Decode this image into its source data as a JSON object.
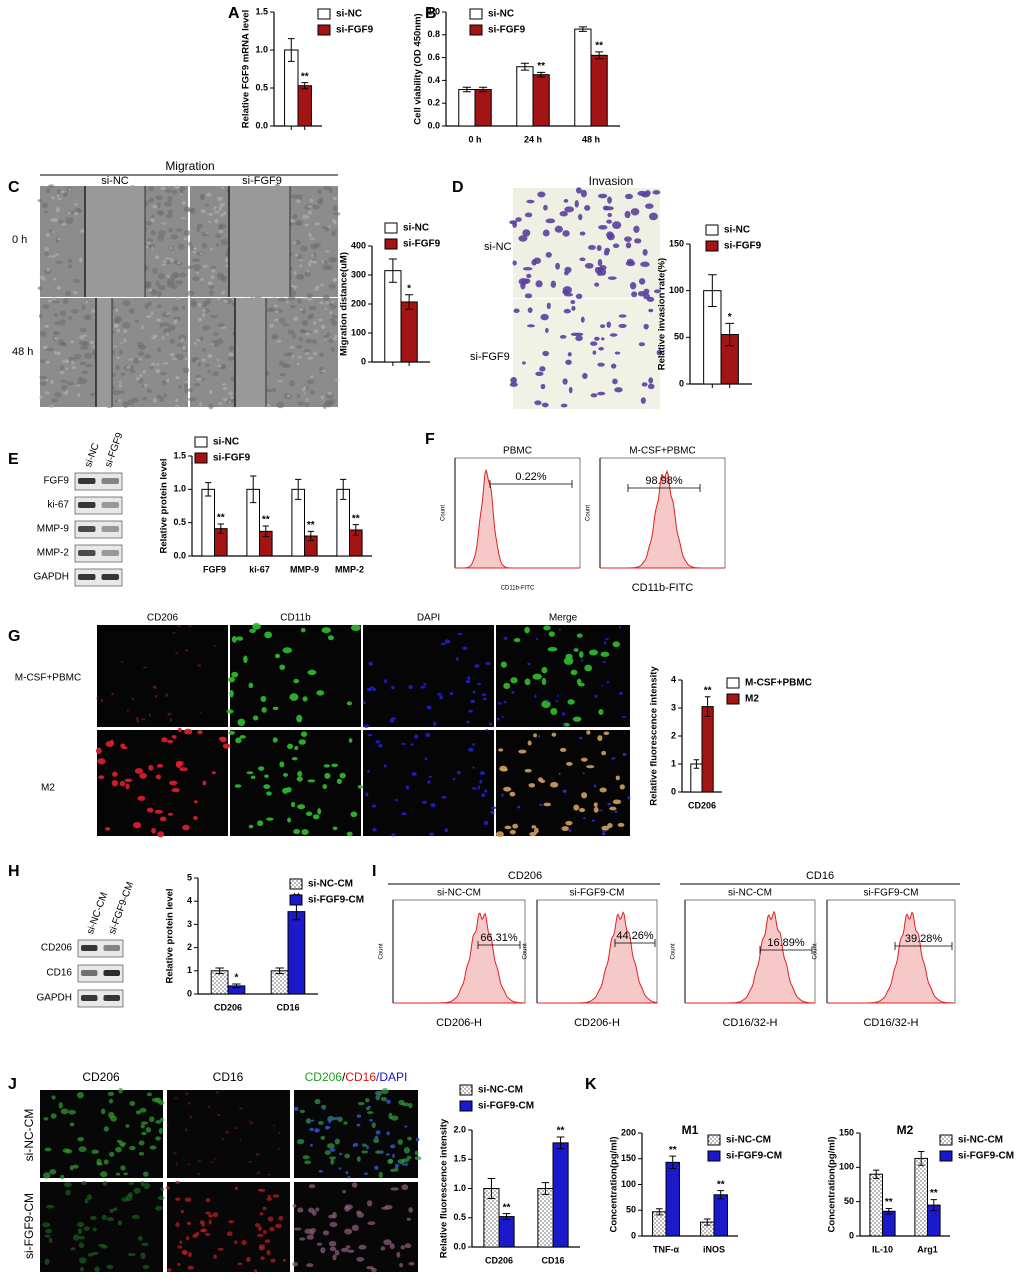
{
  "figure": {
    "panels": [
      "A",
      "B",
      "C",
      "D",
      "E",
      "F",
      "G",
      "H",
      "I",
      "J",
      "K"
    ],
    "C": {
      "title": "Migration",
      "columns": [
        "si-NC",
        "si-FGF9"
      ],
      "rows": [
        "0 h",
        "48 h"
      ]
    },
    "D": {
      "title": "Invasion",
      "rows": [
        "si-NC",
        "si-FGF9"
      ]
    },
    "E": {
      "columns": [
        "si-NC",
        "si-FGF9"
      ],
      "rows": [
        "FGF9",
        "ki-67",
        "MMP-9",
        "MMP-2",
        "GAPDH"
      ]
    },
    "F": {
      "plots": [
        {
          "title": "PBMC",
          "gate": "0.22%",
          "xlabel": "CD11b-FITC",
          "ylabel": "Count"
        },
        {
          "title": "M-CSF+PBMC",
          "gate": "98.98%",
          "xlabel": "CD11b-FITC",
          "ylabel": "Count"
        }
      ]
    },
    "G": {
      "columns": [
        "CD206",
        "CD11b",
        "DAPI",
        "Merge"
      ],
      "rows": [
        "M-CSF+PBMC",
        "M2"
      ]
    },
    "H": {
      "columns": [
        "si-NC-CM",
        "si-FGF9-CM"
      ],
      "rows": [
        "CD206",
        "CD16",
        "GAPDH"
      ]
    },
    "I": {
      "groups": [
        "CD206",
        "CD16"
      ],
      "plots": [
        {
          "title": "si-NC-CM",
          "gate": "66.31%",
          "xlabel": "CD206-H",
          "ylabel": "Count"
        },
        {
          "title": "si-FGF9-CM",
          "gate": "44.26%",
          "xlabel": "CD206-H",
          "ylabel": "Count"
        },
        {
          "title": "si-NC-CM",
          "gate": "16.89%",
          "xlabel": "CD16/32-H",
          "ylabel": "Count"
        },
        {
          "title": "si-FGF9-CM",
          "gate": "39.28%",
          "xlabel": "CD16/32-H",
          "ylabel": "Count"
        }
      ]
    },
    "J": {
      "columns": [
        "CD206",
        "CD16"
      ],
      "merge": [
        {
          "text": "CD206",
          "color": "#1fa01f"
        },
        {
          "text": "/",
          "color": "#000000"
        },
        {
          "text": "CD16",
          "color": "#e01010"
        },
        {
          "text": "/DAPI",
          "color": "#1010d0"
        }
      ],
      "rows": [
        "si-NC-CM",
        "si-FGF9-CM"
      ]
    }
  },
  "chart_data": [
    {
      "type": "bar",
      "ylabel": "Relative FGF9 mRNA level",
      "categories": [
        null
      ],
      "ylim": [
        0,
        1.5
      ],
      "yticks": [
        {
          "value": 0,
          "label": "0.0"
        },
        {
          "value": 0.5,
          "label": "0.5"
        },
        {
          "value": 1,
          "label": "1.0"
        },
        {
          "value": 1.5,
          "label": "1.5"
        }
      ],
      "series": [
        {
          "name": "si-NC",
          "color": "#ffffff",
          "values": [
            1.0
          ],
          "errors": [
            0.15
          ]
        },
        {
          "name": "si-FGF9",
          "color": "#a31515",
          "values": [
            0.53
          ],
          "errors": [
            0.04
          ],
          "labels": [
            "**"
          ]
        }
      ]
    },
    {
      "type": "bar",
      "ylabel": "Cell viability (OD 450nm)",
      "categories": [
        "0 h",
        "24 h",
        "48 h"
      ],
      "ylim": [
        0,
        1.0
      ],
      "yticks": [
        {
          "value": 0,
          "label": "0.0"
        },
        {
          "value": 0.2,
          "label": "0.2"
        },
        {
          "value": 0.4,
          "label": "0.4"
        },
        {
          "value": 0.6,
          "label": "0.6"
        },
        {
          "value": 0.8,
          "label": "0.8"
        },
        {
          "value": 1,
          "label": "1.0"
        }
      ],
      "series": [
        {
          "name": "si-NC",
          "color": "#ffffff",
          "values": [
            0.32,
            0.52,
            0.85
          ],
          "errors": [
            0.02,
            0.03,
            0.02
          ]
        },
        {
          "name": "si-FGF9",
          "color": "#a31515",
          "values": [
            0.32,
            0.45,
            0.62
          ],
          "errors": [
            0.02,
            0.02,
            0.03
          ],
          "labels": [
            null,
            "**",
            "**"
          ]
        }
      ]
    },
    {
      "type": "bar",
      "ylabel": "Migration distance(uM)",
      "categories": [
        null
      ],
      "ylim": [
        0,
        400
      ],
      "yticks": [
        0,
        100,
        200,
        300,
        400
      ],
      "series": [
        {
          "name": "si-NC",
          "color": "#ffffff",
          "values": [
            315
          ],
          "errors": [
            40
          ]
        },
        {
          "name": "si-FGF9",
          "color": "#a31515",
          "values": [
            207
          ],
          "errors": [
            25
          ],
          "labels": [
            "*"
          ]
        }
      ]
    },
    {
      "type": "bar",
      "ylabel": "Relative invasion rate(%)",
      "categories": [
        null
      ],
      "ylim": [
        0,
        150
      ],
      "yticks": [
        0,
        50,
        100,
        150
      ],
      "series": [
        {
          "name": "si-NC",
          "color": "#ffffff",
          "values": [
            100
          ],
          "errors": [
            17
          ]
        },
        {
          "name": "si-FGF9",
          "color": "#a31515",
          "values": [
            53
          ],
          "errors": [
            12
          ],
          "labels": [
            "*"
          ]
        }
      ]
    },
    {
      "type": "bar",
      "ylabel": "Relative protein level",
      "categories": [
        "FGF9",
        "ki-67",
        "MMP-9",
        "MMP-2"
      ],
      "ylim": [
        0,
        1.5
      ],
      "yticks": [
        {
          "value": 0,
          "label": "0.0"
        },
        {
          "value": 0.5,
          "label": "0.5"
        },
        {
          "value": 1,
          "label": "1.0"
        },
        {
          "value": 1.5,
          "label": "1.5"
        }
      ],
      "series": [
        {
          "name": "si-NC",
          "color": "#ffffff",
          "values": [
            1,
            1,
            1,
            1
          ],
          "errors": [
            0.1,
            0.2,
            0.15,
            0.15
          ]
        },
        {
          "name": "si-FGF9",
          "color": "#a31515",
          "values": [
            0.41,
            0.37,
            0.3,
            0.39
          ],
          "errors": [
            0.07,
            0.08,
            0.07,
            0.08
          ],
          "labels": [
            "**",
            "**",
            "**",
            "**"
          ]
        }
      ]
    },
    {
      "type": "bar",
      "ylabel": "Relative fluorescence intensity",
      "categories": [
        "CD206"
      ],
      "ylim": [
        0,
        4
      ],
      "yticks": [
        0,
        1,
        2,
        3,
        4
      ],
      "series": [
        {
          "name": "M-CSF+PBMC",
          "color": "#ffffff",
          "values": [
            1.0
          ],
          "errors": [
            0.15
          ]
        },
        {
          "name": "M2",
          "color": "#a31515",
          "values": [
            3.05
          ],
          "errors": [
            0.35
          ],
          "labels": [
            "**"
          ]
        }
      ]
    },
    {
      "type": "bar",
      "ylabel": "Relative protein level",
      "categories": [
        "CD206",
        "CD16"
      ],
      "ylim": [
        0,
        5
      ],
      "yticks": [
        0,
        1,
        2,
        3,
        4,
        5
      ],
      "series": [
        {
          "name": "si-NC-CM",
          "color": "#ffffff",
          "hatch": "dots",
          "values": [
            1.0,
            1.0
          ],
          "errors": [
            0.12,
            0.12
          ]
        },
        {
          "name": "si-FGF9-CM",
          "color": "#1a1acc",
          "values": [
            0.35,
            3.55
          ],
          "errors": [
            0.08,
            0.35
          ],
          "labels": [
            "*",
            "**"
          ]
        }
      ]
    },
    {
      "type": "bar",
      "ylabel": "Relative fluorescence intensity",
      "categories": [
        "CD206",
        "CD16"
      ],
      "ylim": [
        0,
        2.0
      ],
      "yticks": [
        {
          "value": 0,
          "label": "0.0"
        },
        {
          "value": 0.5,
          "label": "0.5"
        },
        {
          "value": 1,
          "label": "1.0"
        },
        {
          "value": 1.5,
          "label": "1.5"
        },
        {
          "value": 2,
          "label": "2.0"
        }
      ],
      "series": [
        {
          "name": "si-NC-CM",
          "color": "#ffffff",
          "hatch": "dots",
          "values": [
            1.0,
            1.0
          ],
          "errors": [
            0.17,
            0.1
          ]
        },
        {
          "name": "si-FGF9-CM",
          "color": "#1a1acc",
          "values": [
            0.52,
            1.78
          ],
          "errors": [
            0.05,
            0.1
          ],
          "labels": [
            "**",
            "**"
          ]
        }
      ]
    },
    {
      "type": "bar",
      "title": "M1",
      "ylabel": "Concentration(pg/ml)",
      "categories": [
        "TNF-α",
        "iNOS"
      ],
      "ylim": [
        0,
        200
      ],
      "yticks": [
        0,
        50,
        100,
        150,
        200
      ],
      "series": [
        {
          "name": "si-NC-CM",
          "color": "#ffffff",
          "hatch": "dots",
          "values": [
            47,
            27
          ],
          "errors": [
            6,
            6
          ]
        },
        {
          "name": "si-FGF9-CM",
          "color": "#1a1acc",
          "values": [
            143,
            80
          ],
          "errors": [
            12,
            8
          ],
          "labels": [
            "**",
            "**"
          ]
        }
      ]
    },
    {
      "type": "bar",
      "title": "M2",
      "ylabel": "Concentration(pg/ml)",
      "categories": [
        "IL-10",
        "Arg1"
      ],
      "ylim": [
        0,
        150
      ],
      "yticks": [
        0,
        50,
        100,
        150
      ],
      "series": [
        {
          "name": "si-NC-CM",
          "color": "#ffffff",
          "hatch": "dots",
          "values": [
            90,
            113
          ],
          "errors": [
            6,
            10
          ]
        },
        {
          "name": "si-FGF9-CM",
          "color": "#1a1acc",
          "values": [
            36,
            45
          ],
          "errors": [
            4,
            8
          ],
          "labels": [
            "**",
            "**"
          ]
        }
      ]
    }
  ]
}
